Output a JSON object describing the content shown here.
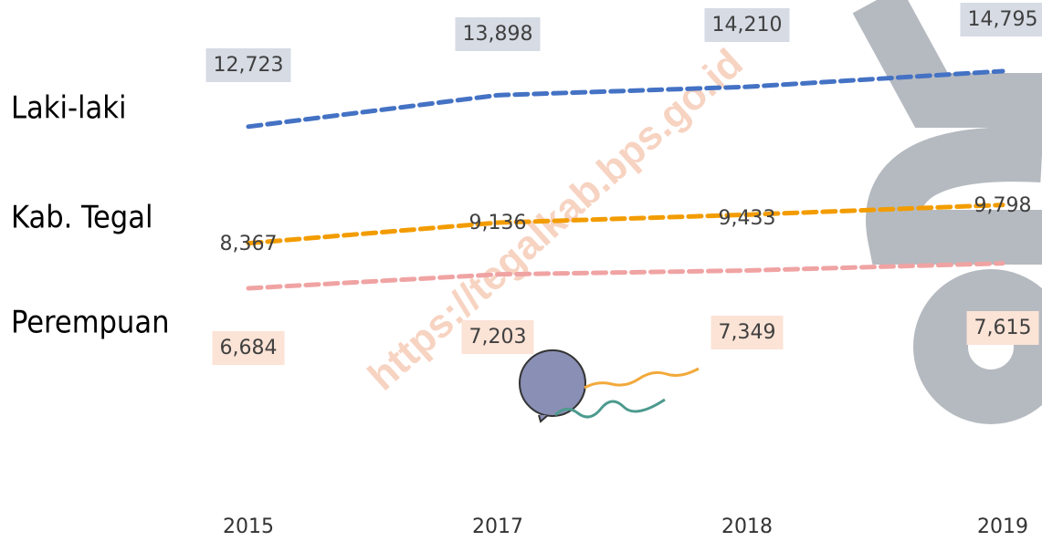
{
  "watermark": "https://tegalkab.bps.go.id",
  "chart_data": {
    "type": "line",
    "categories": [
      "2015",
      "2017",
      "2018",
      "2019"
    ],
    "series": [
      {
        "name": "Laki-laki",
        "color": "#4472c4",
        "values": [
          12723,
          13898,
          14210,
          14795
        ],
        "value_labels": [
          "12,723",
          "13,898",
          "14,210",
          "14,795"
        ]
      },
      {
        "name": "Kab. Tegal",
        "color": "#f29c00",
        "values": [
          8367,
          9136,
          9433,
          9798
        ],
        "value_labels": [
          "8,367",
          "9,136",
          "9,433",
          "9,798"
        ]
      },
      {
        "name": "Perempuan",
        "color": "#f0a3a3",
        "values": [
          6684,
          7203,
          7349,
          7615
        ],
        "value_labels": [
          "6,684",
          "7,203",
          "7,349",
          "7,615"
        ]
      }
    ]
  }
}
